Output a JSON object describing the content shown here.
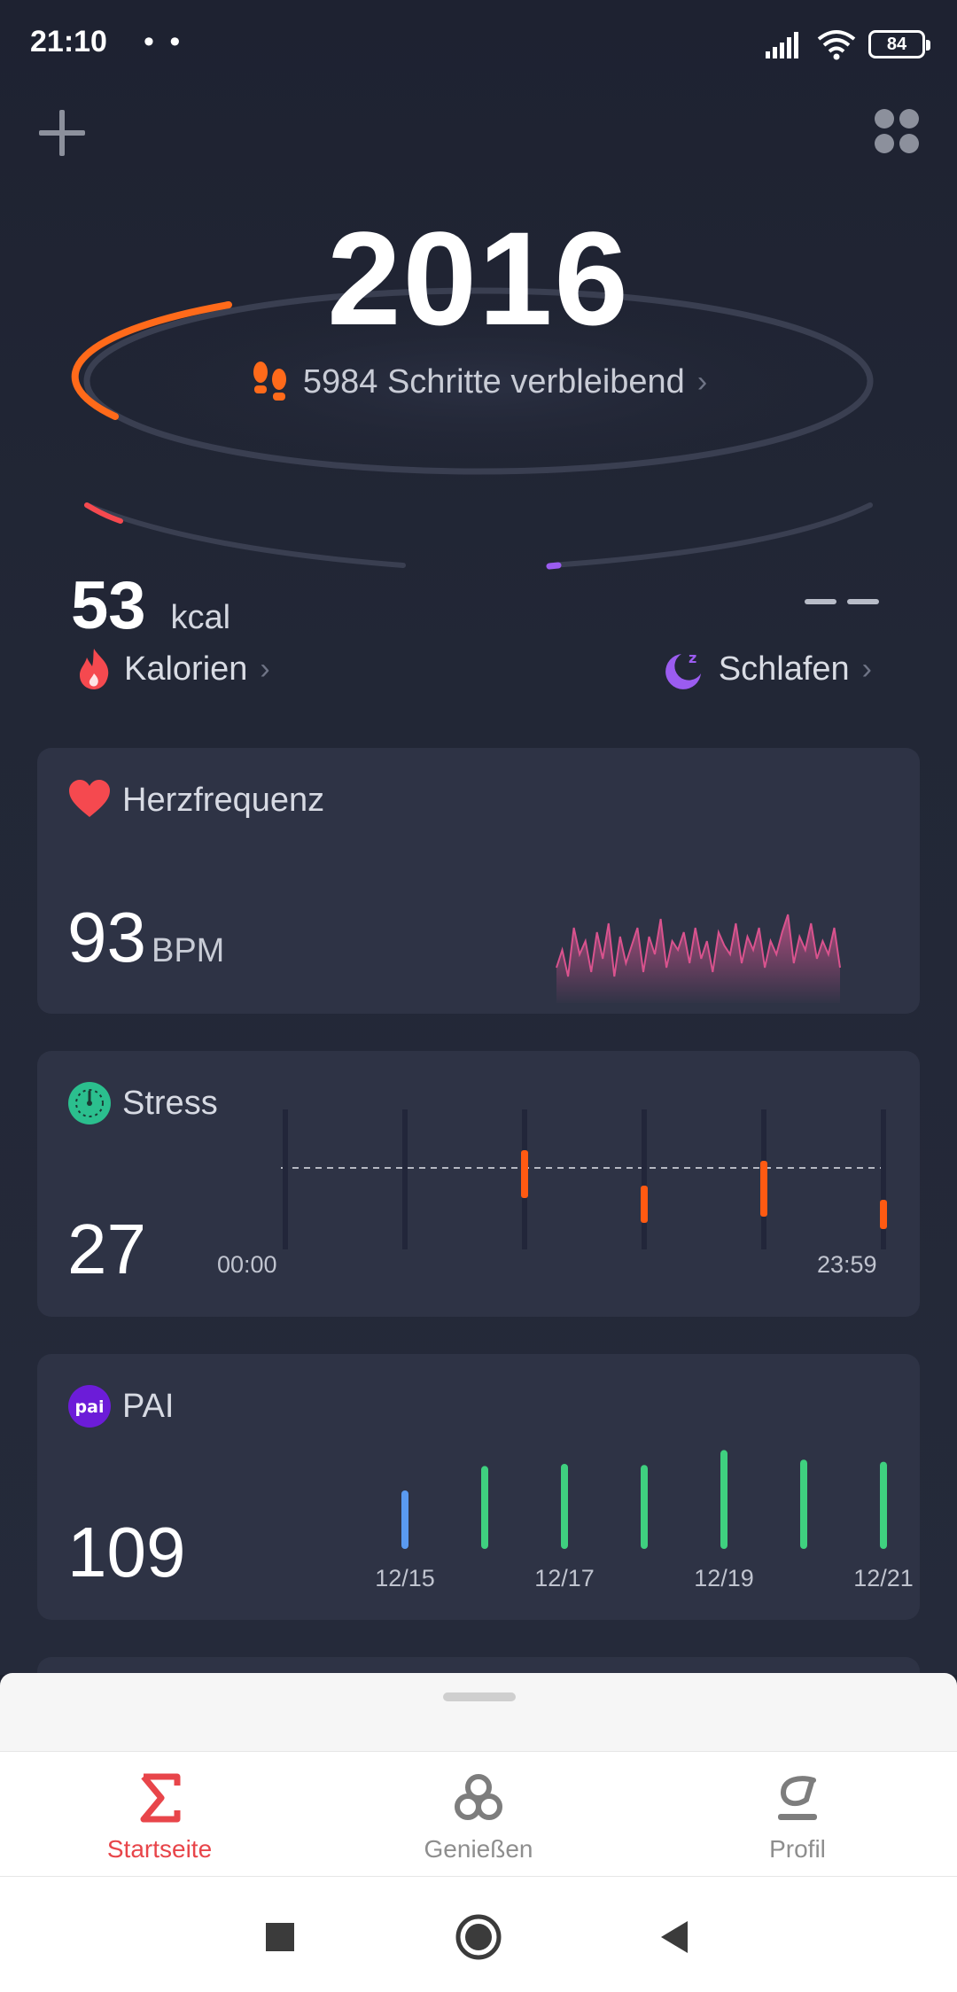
{
  "status_bar": {
    "time": "21:10",
    "dots": "• •",
    "battery": "84"
  },
  "colors": {
    "accent_orange": "#ff6a1a",
    "heart_red": "#f5494f",
    "sleep_purple": "#9b5cf0",
    "stress_green": "#2bbf8e",
    "pai_purple": "#6c1cd8",
    "tab_active": "#e8454a"
  },
  "header": {
    "add_icon": "plus-icon",
    "apps_icon": "apps-grid-icon"
  },
  "steps": {
    "value": "2016",
    "remaining_label": "5984 Schritte verbleibend",
    "progress": 0.25
  },
  "calories": {
    "value": "53",
    "unit": "kcal",
    "label": "Kalorien"
  },
  "sleep": {
    "value": "– –",
    "label": "Schlafen"
  },
  "heart_rate": {
    "title": "Herzfrequenz",
    "value": "93",
    "unit": "BPM",
    "series": [
      72,
      80,
      68,
      90,
      78,
      84,
      70,
      88,
      76,
      92,
      68,
      86,
      74,
      82,
      90,
      70,
      86,
      78,
      94,
      72,
      84,
      80,
      88,
      74,
      90,
      76,
      84,
      70,
      88,
      82,
      78,
      92,
      74,
      86,
      80,
      90,
      72,
      84,
      78,
      88,
      96,
      74,
      86,
      80,
      92,
      76,
      84,
      78,
      90,
      72
    ]
  },
  "stress": {
    "title": "Stress",
    "value": "27",
    "start_label": "00:00",
    "end_label": "23:59",
    "bars": [
      {
        "slot": 0,
        "level": 0
      },
      {
        "slot": 1,
        "level": 0
      },
      {
        "slot": 2,
        "level": 0.36
      },
      {
        "slot": 3,
        "level": 0.28
      },
      {
        "slot": 4,
        "level": 0.42
      },
      {
        "slot": 5,
        "level": 0.22
      }
    ]
  },
  "pai": {
    "title": "PAI",
    "icon_text": "pai",
    "value": "109",
    "days": [
      {
        "label": "12/15",
        "value": 0.55,
        "today": true
      },
      {
        "label": "",
        "value": 0.78
      },
      {
        "label": "12/17",
        "value": 0.8
      },
      {
        "label": "",
        "value": 0.79
      },
      {
        "label": "12/19",
        "value": 0.93
      },
      {
        "label": "",
        "value": 0.84
      },
      {
        "label": "12/21",
        "value": 0.82
      }
    ]
  },
  "tabs": [
    {
      "label": "Startseite",
      "icon": "sigma-icon",
      "active": true
    },
    {
      "label": "Genießen",
      "icon": "enjoy-knot-icon",
      "active": false
    },
    {
      "label": "Profil",
      "icon": "profile-icon",
      "active": false
    }
  ]
}
